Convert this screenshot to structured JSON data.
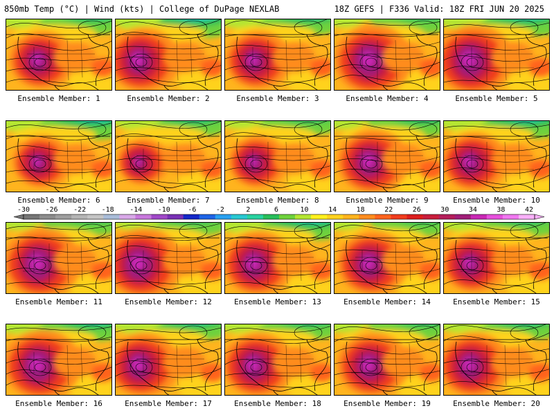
{
  "header": {
    "left": "850mb Temp (°C) | Wind (kts) | College of DuPage NEXLAB",
    "right": "18Z GEFS | F336 Valid: 18Z FRI JUN 20 2025"
  },
  "members": [
    {
      "label": "Ensemble Member: 1",
      "heat": 1.0,
      "cold": 0.55
    },
    {
      "label": "Ensemble Member: 2",
      "heat": 1.1,
      "cold": 0.9
    },
    {
      "label": "Ensemble Member: 3",
      "heat": 1.0,
      "cold": 0.6
    },
    {
      "label": "Ensemble Member: 4",
      "heat": 1.2,
      "cold": 0.45
    },
    {
      "label": "Ensemble Member: 5",
      "heat": 1.2,
      "cold": 0.75
    },
    {
      "label": "Ensemble Member: 6",
      "heat": 0.9,
      "cold": 0.85
    },
    {
      "label": "Ensemble Member: 7",
      "heat": 0.8,
      "cold": 0.6
    },
    {
      "label": "Ensemble Member: 8",
      "heat": 0.9,
      "cold": 0.45
    },
    {
      "label": "Ensemble Member: 9",
      "heat": 1.1,
      "cold": 0.55
    },
    {
      "label": "Ensemble Member: 10",
      "heat": 1.0,
      "cold": 0.8
    },
    {
      "label": "Ensemble Member: 11",
      "heat": 1.2,
      "cold": 0.35
    },
    {
      "label": "Ensemble Member: 12",
      "heat": 1.2,
      "cold": 0.4
    },
    {
      "label": "Ensemble Member: 13",
      "heat": 1.1,
      "cold": 0.8
    },
    {
      "label": "Ensemble Member: 14",
      "heat": 1.1,
      "cold": 0.4
    },
    {
      "label": "Ensemble Member: 15",
      "heat": 1.0,
      "cold": 0.5
    },
    {
      "label": "Ensemble Member: 16",
      "heat": 1.2,
      "cold": 0.7
    },
    {
      "label": "Ensemble Member: 17",
      "heat": 1.1,
      "cold": 0.65
    },
    {
      "label": "Ensemble Member: 18",
      "heat": 1.1,
      "cold": 0.55
    },
    {
      "label": "Ensemble Member: 19",
      "heat": 1.1,
      "cold": 0.5
    },
    {
      "label": "Ensemble Member: 20",
      "heat": 1.1,
      "cold": 0.6
    }
  ],
  "colorbar": {
    "ticks": [
      "-30",
      "-26",
      "-22",
      "-18",
      "-14",
      "-10",
      "-6",
      "-2",
      "2",
      "6",
      "10",
      "14",
      "18",
      "22",
      "26",
      "30",
      "34",
      "38",
      "42"
    ],
    "colors": [
      "#767676",
      "#8c8c8c",
      "#9e9e9e",
      "#b4b4b4",
      "#c4c4c4",
      "#a8bcd8",
      "#d8a8e8",
      "#c878dc",
      "#a048c8",
      "#7830b4",
      "#1428c8",
      "#1e64e6",
      "#28a0f0",
      "#28c8d2",
      "#28d2a0",
      "#28be5a",
      "#6ed23c",
      "#b4e632",
      "#fff01e",
      "#ffd21e",
      "#ffb41e",
      "#ff8c1e",
      "#ff641e",
      "#f03c1e",
      "#dc1e1e",
      "#c81e3c",
      "#b41e5a",
      "#a01e78",
      "#c828b4",
      "#e650dc",
      "#f078f0",
      "#f8b0f8"
    ]
  }
}
